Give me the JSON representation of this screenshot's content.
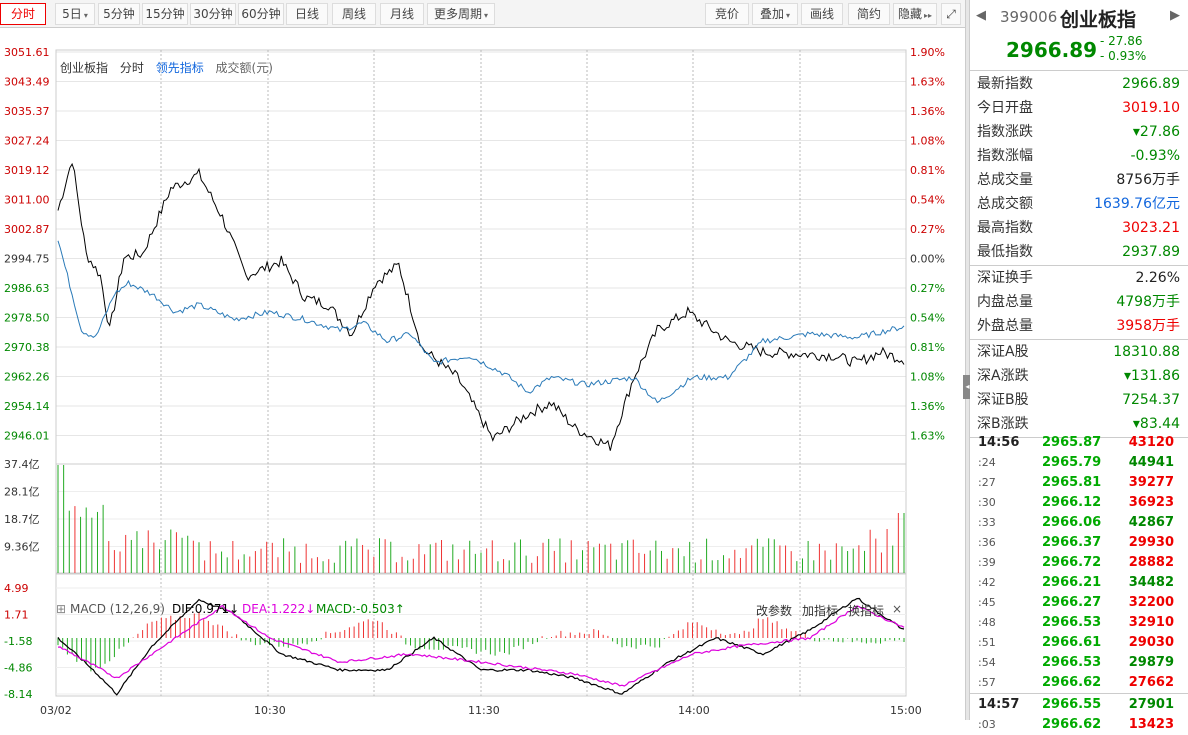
{
  "toolbar": {
    "left": [
      {
        "label": "分时",
        "active": true,
        "x": 0,
        "w": 46
      },
      {
        "label": "5日",
        "dd": true,
        "x": 55,
        "w": 40
      },
      {
        "label": "5分钟",
        "x": 98,
        "w": 42
      },
      {
        "label": "15分钟",
        "x": 142,
        "w": 46
      },
      {
        "label": "30分钟",
        "x": 190,
        "w": 46
      },
      {
        "label": "60分钟",
        "x": 238,
        "w": 46
      },
      {
        "label": "日线",
        "x": 286,
        "w": 42
      },
      {
        "label": "周线",
        "x": 332,
        "w": 44
      },
      {
        "label": "月线",
        "x": 380,
        "w": 44
      },
      {
        "label": "更多周期",
        "dd": true,
        "x": 427,
        "w": 68
      }
    ],
    "right": [
      {
        "label": "竞价",
        "x": 705,
        "w": 44
      },
      {
        "label": "叠加",
        "dd": true,
        "x": 752,
        "w": 46
      },
      {
        "label": "画线",
        "x": 801,
        "w": 42
      },
      {
        "label": "简约",
        "x": 848,
        "w": 42
      },
      {
        "label": "隐藏",
        "dd2": true,
        "x": 893,
        "w": 44
      }
    ],
    "fullscreen_icon": "expand-icon"
  },
  "chart": {
    "labels": {
      "name": "创业板指",
      "mode": "分时",
      "lead": "领先指标",
      "vol": "成交额(元)"
    },
    "price_ticks": [
      "3051.61",
      "3043.49",
      "3035.37",
      "3027.24",
      "3019.12",
      "3011.00",
      "3002.87",
      "2994.75",
      "2986.63",
      "2978.50",
      "2970.38",
      "2962.26",
      "2954.14",
      "2946.01"
    ],
    "pct_ticks": [
      "1.90%",
      "1.63%",
      "1.36%",
      "1.08%",
      "0.81%",
      "0.54%",
      "0.27%",
      "0.00%",
      "0.27%",
      "0.54%",
      "0.81%",
      "1.08%",
      "1.36%",
      "1.63%"
    ],
    "vol_ticks": [
      "37.4亿",
      "28.1亿",
      "18.7亿",
      "9.36亿"
    ],
    "macd_ticks": [
      "4.99",
      "1.71",
      "-1.58",
      "-4.86",
      "-8.14"
    ],
    "time_labels": [
      "03/02",
      "10:30",
      "11:30",
      "14:00",
      "15:00"
    ],
    "macd": {
      "name": "MACD (12,26,9)",
      "dif": "DIF:0.971↓",
      "dea": "DEA:1.222↓",
      "macd": "MACD:-0.503↑",
      "tune": "改参数",
      "add": "加指标",
      "swap": "换指标",
      "close": "×"
    }
  },
  "chart_data": {
    "type": "line",
    "prev_close": 2994.75,
    "price_range": [
      2937.89,
      3051.61
    ],
    "series": [
      {
        "name": "创业板指",
        "color": "#000"
      },
      {
        "name": "领先指标",
        "color": "#2a7ab8"
      }
    ],
    "volume_ylim": [
      0,
      37.4
    ],
    "macd_ylim": [
      -8.14,
      4.99
    ]
  },
  "quote": {
    "code": "399006",
    "name": "创业板指",
    "price": "2966.89",
    "change": "- 27.86",
    "pct": "- 0.93%"
  },
  "stats": [
    {
      "k": "最新指数",
      "v": "2966.89",
      "c": "grn"
    },
    {
      "k": "今日开盘",
      "v": "3019.10",
      "c": "red"
    },
    {
      "k": "指数涨跌",
      "v": "▾27.86",
      "c": "grn"
    },
    {
      "k": "指数涨幅",
      "v": "-0.93%",
      "c": "grn"
    },
    {
      "k": "总成交量",
      "v": "8756万手",
      "c": ""
    },
    {
      "k": "总成交额",
      "v": "1639.76亿元",
      "c": "blu"
    },
    {
      "k": "最高指数",
      "v": "3023.21",
      "c": "red"
    },
    {
      "k": "最低指数",
      "v": "2937.89",
      "c": "grn"
    }
  ],
  "stats2": [
    {
      "k": "深证换手",
      "v": "2.26%",
      "c": ""
    },
    {
      "k": "内盘总量",
      "v": "4798万手",
      "c": "grn"
    },
    {
      "k": "外盘总量",
      "v": "3958万手",
      "c": "red"
    }
  ],
  "stats3": [
    {
      "k": "深证A股",
      "v": "18310.88",
      "c": "grn"
    },
    {
      "k": "深A涨跌",
      "v": "▾131.86",
      "c": "grn"
    },
    {
      "k": "深证B股",
      "v": "7254.37",
      "c": "grn"
    },
    {
      "k": "深B涨跌",
      "v": "▾83.44",
      "c": "grn"
    }
  ],
  "ticks": [
    {
      "t": "14:56",
      "p": "2965.87",
      "v": "43120",
      "c": "red",
      "big": true
    },
    {
      "t": ":24",
      "p": "2965.79",
      "v": "44941",
      "c": "grn"
    },
    {
      "t": ":27",
      "p": "2965.81",
      "v": "39277",
      "c": "red"
    },
    {
      "t": ":30",
      "p": "2966.12",
      "v": "36923",
      "c": "red"
    },
    {
      "t": ":33",
      "p": "2966.06",
      "v": "42867",
      "c": "grn"
    },
    {
      "t": ":36",
      "p": "2966.37",
      "v": "29930",
      "c": "red"
    },
    {
      "t": ":39",
      "p": "2966.72",
      "v": "28882",
      "c": "red"
    },
    {
      "t": ":42",
      "p": "2966.21",
      "v": "34482",
      "c": "grn"
    },
    {
      "t": ":45",
      "p": "2966.27",
      "v": "32200",
      "c": "red"
    },
    {
      "t": ":48",
      "p": "2966.53",
      "v": "32910",
      "c": "red"
    },
    {
      "t": ":51",
      "p": "2966.61",
      "v": "29030",
      "c": "red"
    },
    {
      "t": ":54",
      "p": "2966.53",
      "v": "29879",
      "c": "grn"
    },
    {
      "t": ":57",
      "p": "2966.62",
      "v": "27662",
      "c": "red"
    },
    {
      "t": "14:57",
      "p": "2966.55",
      "v": "27901",
      "c": "grn",
      "big": true
    },
    {
      "t": ":03",
      "p": "2966.62",
      "v": "13423",
      "c": "red"
    }
  ]
}
